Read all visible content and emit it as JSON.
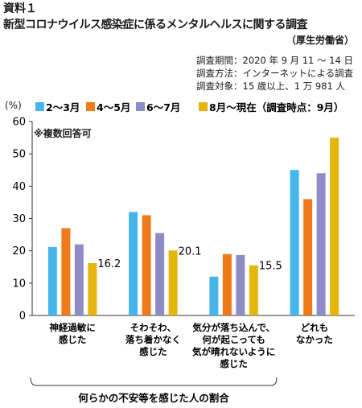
{
  "header": {
    "doc_label": "資料１",
    "title": "新型コロナウイルス感染症に係るメンタルヘルスに関する調査",
    "source": "（厚生労働省）",
    "meta": [
      "調査期間：2020 年 9 月 11 ～ 14 日",
      "調査方法：インターネットによる調査",
      "調査対象：15 歳以上、1 万 981 人"
    ]
  },
  "chart_data": {
    "type": "bar",
    "ylabel": "(%)",
    "ylim": [
      0,
      60
    ],
    "yticks": [
      0,
      10,
      20,
      30,
      40,
      50,
      60
    ],
    "grid": false,
    "legend_position": "top",
    "note": "※複数回答可",
    "categories": [
      [
        "神経過敏に",
        "感じた"
      ],
      [
        "そわそわ、",
        "落ち着かなく",
        "感じた"
      ],
      [
        "気分が落ち込んで、",
        "何が起こっても",
        "気が晴れないように",
        "感じた"
      ],
      [
        "どれも",
        "なかった"
      ]
    ],
    "series": [
      {
        "name": "2～3月",
        "color": "#45b5eb",
        "values": [
          21.2,
          32,
          12,
          45
        ]
      },
      {
        "name": "4～5月",
        "color": "#ef7a1a",
        "values": [
          27,
          31,
          19,
          36
        ]
      },
      {
        "name": "6～7月",
        "color": "#8e8cc7",
        "values": [
          22,
          25.5,
          18.7,
          44
        ]
      },
      {
        "name": "8月～現在（調査時点：9月）",
        "color": "#e6b50c",
        "values": [
          16.2,
          20.1,
          15.5,
          55
        ]
      }
    ],
    "data_labels": [
      {
        "category": 0,
        "series": 3,
        "text": "16.2"
      },
      {
        "category": 1,
        "series": 3,
        "text": "20.1"
      },
      {
        "category": 2,
        "series": 3,
        "text": "15.5"
      }
    ],
    "group_label": "何らかの不安等を感じた人の割合"
  }
}
